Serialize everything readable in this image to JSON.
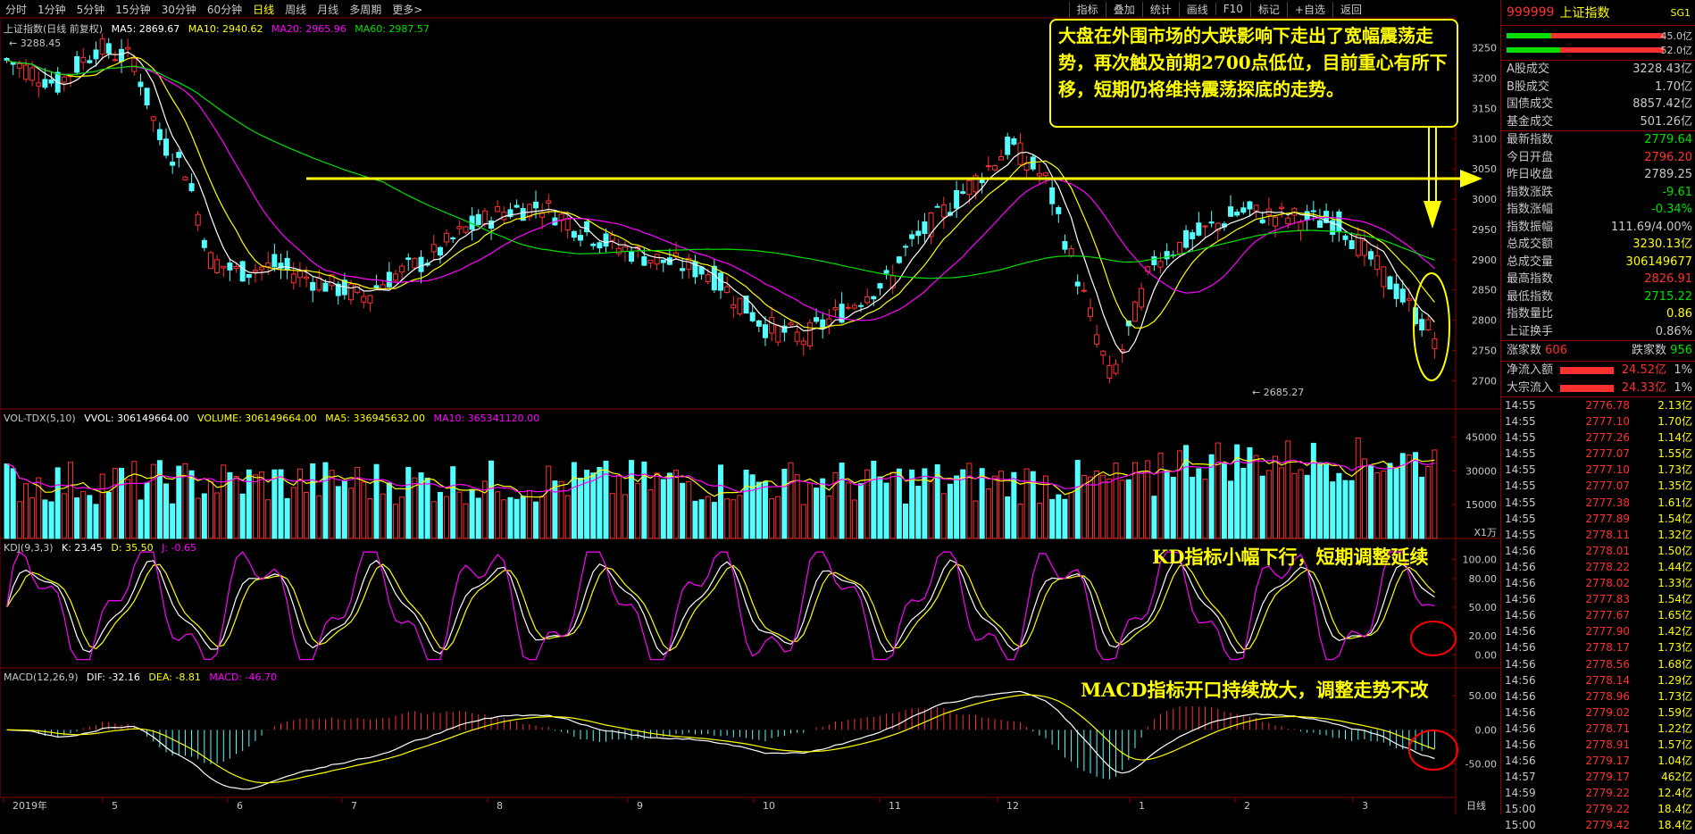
{
  "tabs": [
    "分时",
    "1分钟",
    "5分钟",
    "15分钟",
    "30分钟",
    "60分钟",
    "日线",
    "周线",
    "月线",
    "多周期",
    "更多>"
  ],
  "active_tab": "日线",
  "toolbar": [
    "指标",
    "叠加",
    "统计",
    "画线",
    "F10",
    "标记",
    "+自选",
    "返回"
  ],
  "main_title": "上证指数(日线 前复权)",
  "ma_labels": [
    {
      "text": "MA5: 2869.67",
      "color": "#ffffff"
    },
    {
      "text": "MA10: 2940.62",
      "color": "#ffff00"
    },
    {
      "text": "MA20: 2965.96",
      "color": "#ff00ff"
    },
    {
      "text": "MA60: 2987.57",
      "color": "#00e000"
    }
  ],
  "high_mark": "3288.45",
  "low_mark": "2685.27",
  "vol_title": "VOL-TDX(5,10)",
  "vol_labels": [
    {
      "text": "VVOL: 306149664.00",
      "color": "#ffffff"
    },
    {
      "text": "VOLUME: 306149664.00",
      "color": "#ffff00"
    },
    {
      "text": "MA5: 336945632.00",
      "color": "#ffff00"
    },
    {
      "text": "MA10: 365341120.00",
      "color": "#ff00ff"
    }
  ],
  "vol_unit": "X1万",
  "kdj_title": "KDJ(9,3,3)",
  "kdj_labels": [
    {
      "text": "K: 23.45",
      "color": "#ffffff"
    },
    {
      "text": "D: 35.50",
      "color": "#ffff00"
    },
    {
      "text": "J: -0.65",
      "color": "#ff00ff"
    }
  ],
  "macd_title": "MACD(12,26,9)",
  "macd_labels": [
    {
      "text": "DIF: -32.16",
      "color": "#ffffff"
    },
    {
      "text": "DEA: -8.81",
      "color": "#ffff00"
    },
    {
      "text": "MACD: -46.70",
      "color": "#ff00ff"
    }
  ],
  "annotation_main": "大盘在外围市场的大跌影响下走出了宽幅震荡走势，再次触及前期2700点低位，目前重心有所下移，短期仍将维持震荡探底的走势。",
  "annotation_kd": "KD指标小幅下行，短期调整延续",
  "annotation_macd": "MACD指标开口持续放大，调整走势不改",
  "period_label": "日线",
  "y_axis_main": [
    "3250",
    "3200",
    "3150",
    "3100",
    "3050",
    "3000",
    "2950",
    "2900",
    "2850",
    "2800",
    "2750",
    "2700"
  ],
  "y_axis_vol": [
    "45000",
    "30000",
    "15000"
  ],
  "y_axis_kdj": [
    "100.00",
    "80.00",
    "50.00",
    "20.00",
    "0.00"
  ],
  "y_axis_macd": [
    "50.00",
    "0.00",
    "-50.00"
  ],
  "x_axis": [
    "2019年",
    "5",
    "6",
    "7",
    "8",
    "9",
    "10",
    "11",
    "12",
    "1",
    "2",
    "3"
  ],
  "panel": {
    "code": "999999",
    "name": "上证指数",
    "flag": "SG1",
    "bar_values": [
      "45.0亿",
      "52.0亿"
    ],
    "rows_a": [
      {
        "k": "A股成交",
        "v": "3228.43亿",
        "c": "white"
      },
      {
        "k": "B股成交",
        "v": "1.70亿",
        "c": "white"
      },
      {
        "k": "国债成交",
        "v": "8857.42亿",
        "c": "white"
      },
      {
        "k": "基金成交",
        "v": "501.26亿",
        "c": "white"
      }
    ],
    "rows_b": [
      {
        "k": "最新指数",
        "v": "2779.64",
        "c": "green"
      },
      {
        "k": "今日开盘",
        "v": "2796.20",
        "c": "red"
      },
      {
        "k": "昨日收盘",
        "v": "2789.25",
        "c": "white"
      },
      {
        "k": "指数涨跌",
        "v": "-9.61",
        "c": "green"
      },
      {
        "k": "指数涨幅",
        "v": "-0.34%",
        "c": "green"
      },
      {
        "k": "指数振幅",
        "v": "111.69/4.00%",
        "c": "white"
      },
      {
        "k": "总成交额",
        "v": "3230.13亿",
        "c": "yellow"
      },
      {
        "k": "总成交量",
        "v": "306149677",
        "c": "yellow"
      },
      {
        "k": "最高指数",
        "v": "2826.91",
        "c": "red"
      },
      {
        "k": "最低指数",
        "v": "2715.22",
        "c": "green"
      },
      {
        "k": "指数量比",
        "v": "0.86",
        "c": "yellow"
      },
      {
        "k": "上证换手",
        "v": "0.86%",
        "c": "white"
      }
    ],
    "up_label": "涨家数",
    "up_value": "606",
    "down_label": "跌家数",
    "down_value": "956",
    "flow": [
      {
        "k": "净流入额",
        "v": "24.52亿",
        "p": "1%"
      },
      {
        "k": "大宗流入",
        "v": "24.33亿",
        "p": "1%"
      }
    ],
    "ticks": [
      [
        "14:55",
        "2776.78",
        "2.13亿"
      ],
      [
        "14:55",
        "2777.10",
        "1.70亿"
      ],
      [
        "14:55",
        "2777.26",
        "1.14亿"
      ],
      [
        "14:55",
        "2777.07",
        "1.55亿"
      ],
      [
        "14:55",
        "2777.10",
        "1.73亿"
      ],
      [
        "14:55",
        "2777.07",
        "1.35亿"
      ],
      [
        "14:55",
        "2777.38",
        "1.61亿"
      ],
      [
        "14:55",
        "2777.89",
        "1.54亿"
      ],
      [
        "14:55",
        "2778.11",
        "1.32亿"
      ],
      [
        "14:56",
        "2778.01",
        "1.50亿"
      ],
      [
        "14:56",
        "2778.22",
        "1.44亿"
      ],
      [
        "14:56",
        "2778.02",
        "1.33亿"
      ],
      [
        "14:56",
        "2777.83",
        "1.54亿"
      ],
      [
        "14:56",
        "2777.67",
        "1.65亿"
      ],
      [
        "14:56",
        "2777.90",
        "1.42亿"
      ],
      [
        "14:56",
        "2778.17",
        "1.73亿"
      ],
      [
        "14:56",
        "2778.56",
        "1.68亿"
      ],
      [
        "14:56",
        "2778.14",
        "1.29亿"
      ],
      [
        "14:56",
        "2778.96",
        "1.73亿"
      ],
      [
        "14:56",
        "2779.02",
        "1.59亿"
      ],
      [
        "14:56",
        "2778.71",
        "1.22亿"
      ],
      [
        "14:56",
        "2778.91",
        "1.57亿"
      ],
      [
        "14:56",
        "2779.17",
        "1.04亿"
      ],
      [
        "14:57",
        "2779.17",
        "462亿"
      ],
      [
        "14:59",
        "2779.22",
        "12.4亿"
      ],
      [
        "15:00",
        "2779.22",
        "18.4亿"
      ],
      [
        "15:00",
        "2779.42",
        "18.4亿"
      ]
    ]
  }
}
